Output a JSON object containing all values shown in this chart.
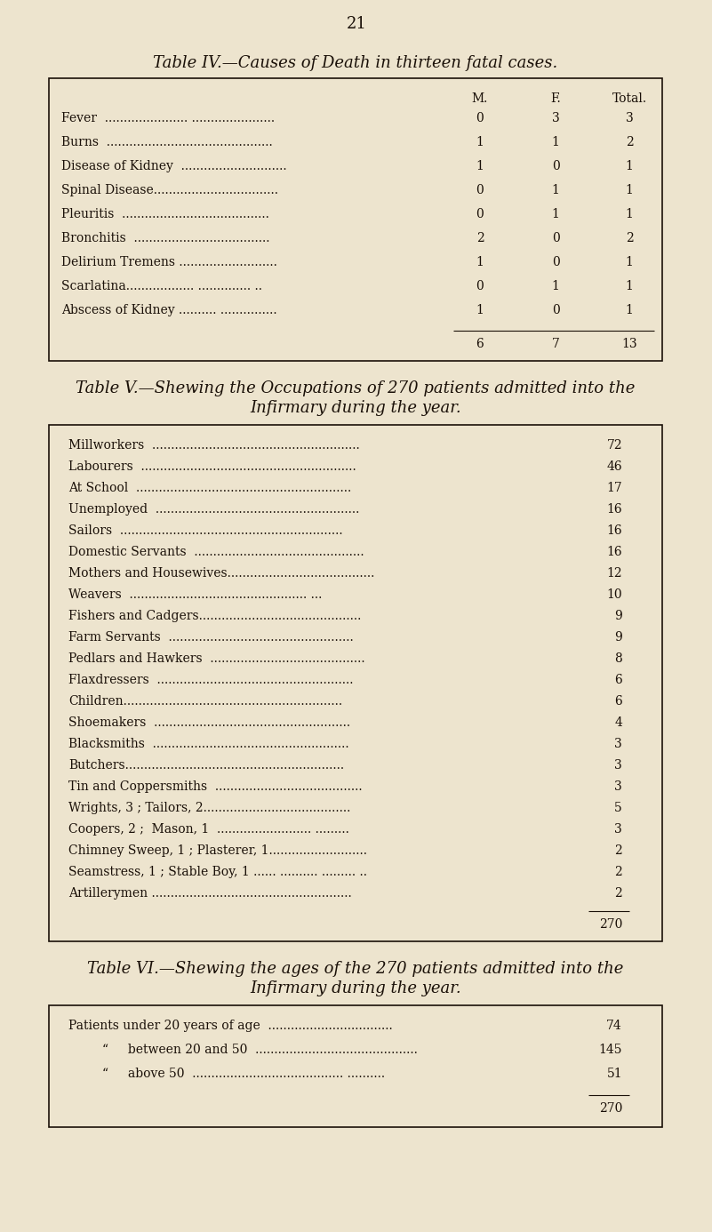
{
  "page_number": "21",
  "bg_color": "#ede4ce",
  "text_color": "#1a1008",
  "table4_title": "Table IV.—Causes of Death in thirteen fatal cases.",
  "table4_headers": [
    "M.",
    "F.",
    "Total."
  ],
  "table4_rows": [
    [
      "Fever  ...................... ......................",
      "0",
      "3",
      "3"
    ],
    [
      "Burns  ............................................",
      "1",
      "1",
      "2"
    ],
    [
      "Disease of Kidney  ............................",
      "1",
      "0",
      "1"
    ],
    [
      "Spinal Disease.................................",
      "0",
      "1",
      "1"
    ],
    [
      "Pleuritis  .......................................",
      "0",
      "1",
      "1"
    ],
    [
      "Bronchitis  ....................................",
      "2",
      "0",
      "2"
    ],
    [
      "Delirium Tremens ..........................",
      "1",
      "0",
      "1"
    ],
    [
      "Scarlatina.................. .............. ..",
      "0",
      "1",
      "1"
    ],
    [
      "Abscess of Kidney .......... ...............",
      "1",
      "0",
      "1"
    ]
  ],
  "table4_totals": [
    "6",
    "7",
    "13"
  ],
  "table5_title1": "Table V.—Shewing the Occupations of 270 patients admitted into the",
  "table5_title2": "Infirmary during the year.",
  "table5_rows": [
    [
      "Millworkers  .......................................................",
      "72"
    ],
    [
      "Labourers  .........................................................",
      "46"
    ],
    [
      "At School  .........................................................",
      "17"
    ],
    [
      "Unemployed  ......................................................",
      "16"
    ],
    [
      "Sailors  ...........................................................",
      "16"
    ],
    [
      "Domestic Servants  .............................................",
      "16"
    ],
    [
      "Mothers and Housewives.......................................",
      "12"
    ],
    [
      "Weavers  ............................................... ...",
      "10"
    ],
    [
      "Fishers and Cadgers...........................................",
      "9"
    ],
    [
      "Farm Servants  .................................................",
      "9"
    ],
    [
      "Pedlars and Hawkers  .........................................",
      "8"
    ],
    [
      "Flaxdressers  ....................................................",
      "6"
    ],
    [
      "Children..........................................................",
      "6"
    ],
    [
      "Shoemakers  ....................................................",
      "4"
    ],
    [
      "Blacksmiths  ....................................................",
      "3"
    ],
    [
      "Butchers..........................................................",
      "3"
    ],
    [
      "Tin and Coppersmiths  .......................................",
      "3"
    ],
    [
      "Wrights, 3 ; Tailors, 2.......................................",
      "5"
    ],
    [
      "Coopers, 2 ;  Mason, 1  ......................... .........",
      "3"
    ],
    [
      "Chimney Sweep, 1 ; Plasterer, 1..........................",
      "2"
    ],
    [
      "Seamstress, 1 ; Stable Boy, 1 ...... .......... ......... ..",
      "2"
    ],
    [
      "Artillerymen .....................................................",
      "2"
    ]
  ],
  "table5_total": "270",
  "table6_title1": "Table VI.—Shewing the ages of the 270 patients admitted into the",
  "table6_title2": "Infirmary during the year.",
  "table6_rows": [
    [
      "Patients under 20 years of age  .................................",
      "74"
    ],
    [
      "“     between 20 and 50  ...........................................",
      "145"
    ],
    [
      "“     above 50  ........................................ ..........",
      "51"
    ]
  ],
  "table6_total": "270"
}
